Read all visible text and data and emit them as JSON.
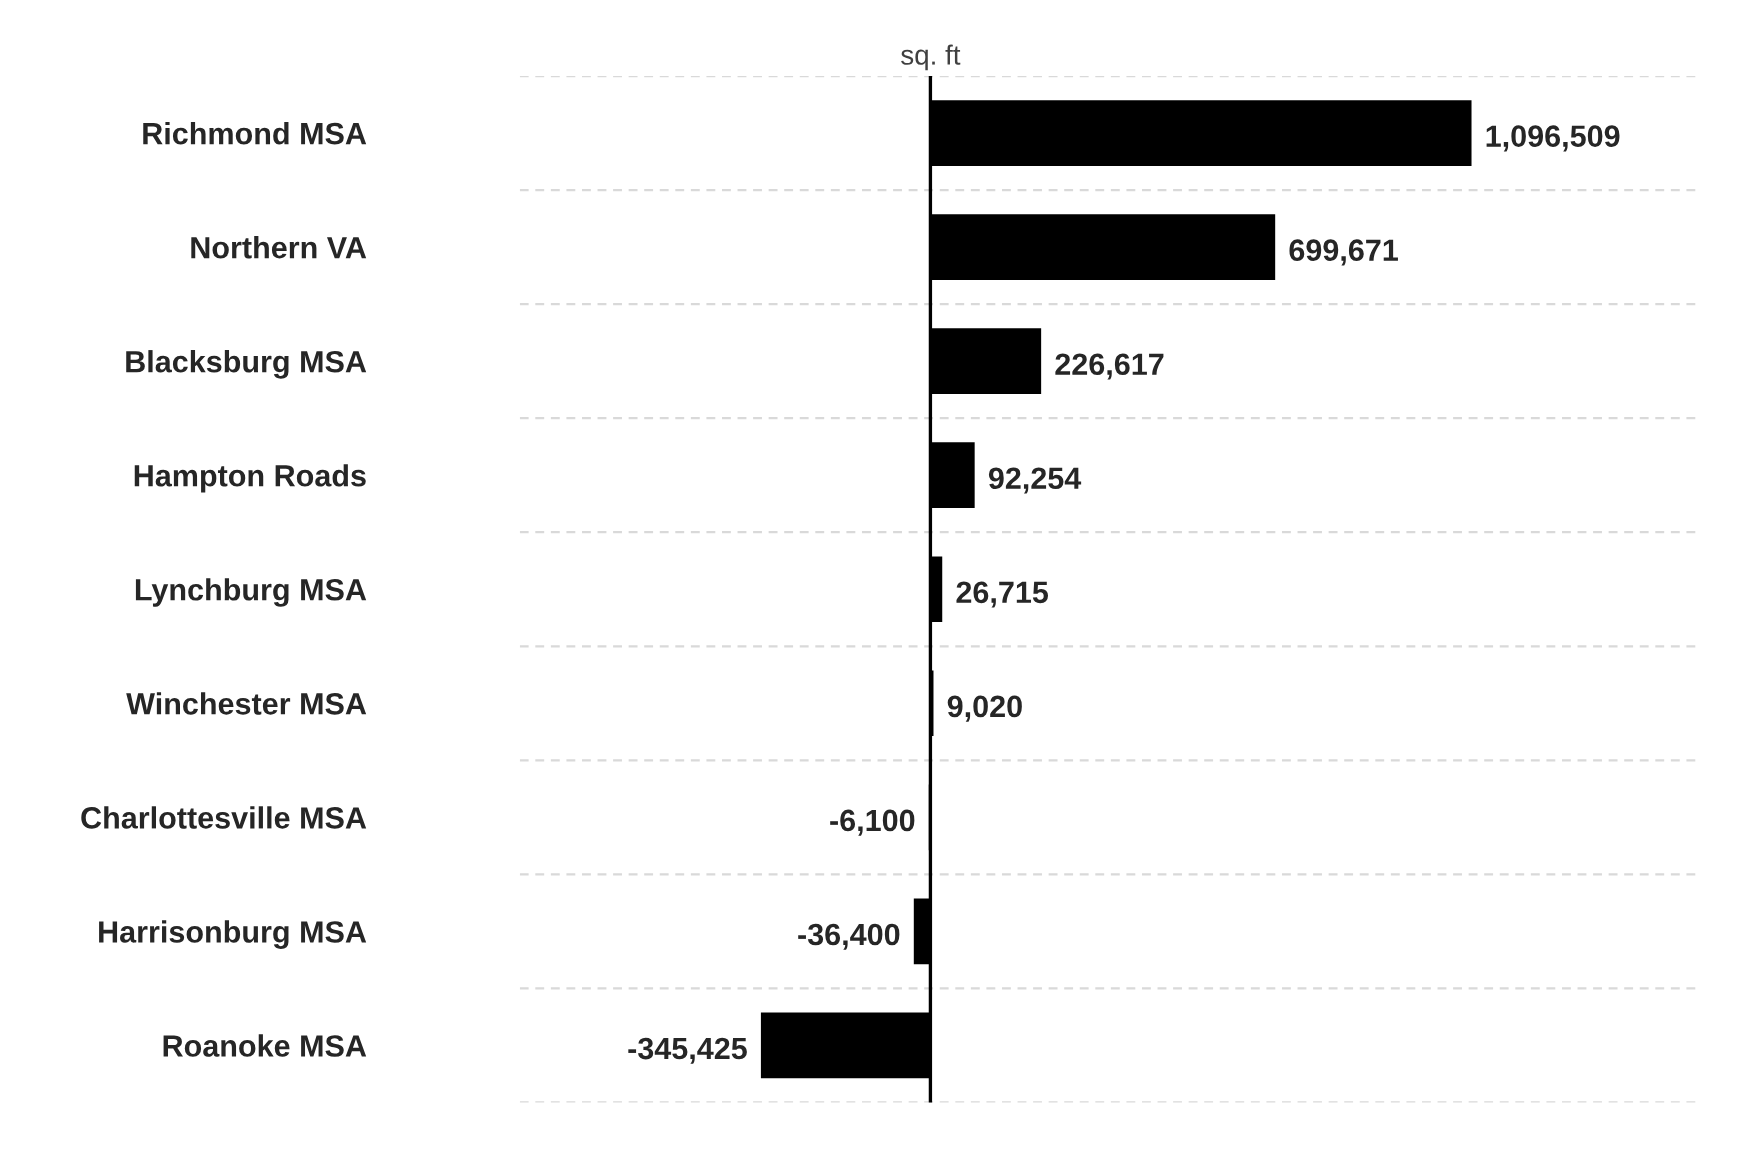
{
  "chart_data": {
    "type": "bar",
    "orientation": "horizontal",
    "xlabel": "sq. ft",
    "categories": [
      "Richmond MSA",
      "Northern VA",
      "Blacksburg MSA",
      "Hampton Roads",
      "Lynchburg MSA",
      "Winchester MSA",
      "Charlottesville MSA",
      "Harrisonburg MSA",
      "Roanoke MSA"
    ],
    "values": [
      1096509,
      699671,
      226617,
      92254,
      26715,
      9020,
      -6100,
      -36400,
      -345425
    ],
    "value_labels": [
      "1,096,509",
      "699,671",
      "226,617",
      "92,254",
      "26,715",
      "9,020",
      "-6,100",
      "-36,400",
      "-345,425"
    ],
    "color": "#000000",
    "tick_labels": "y",
    "grid": "y",
    "legend": false
  }
}
